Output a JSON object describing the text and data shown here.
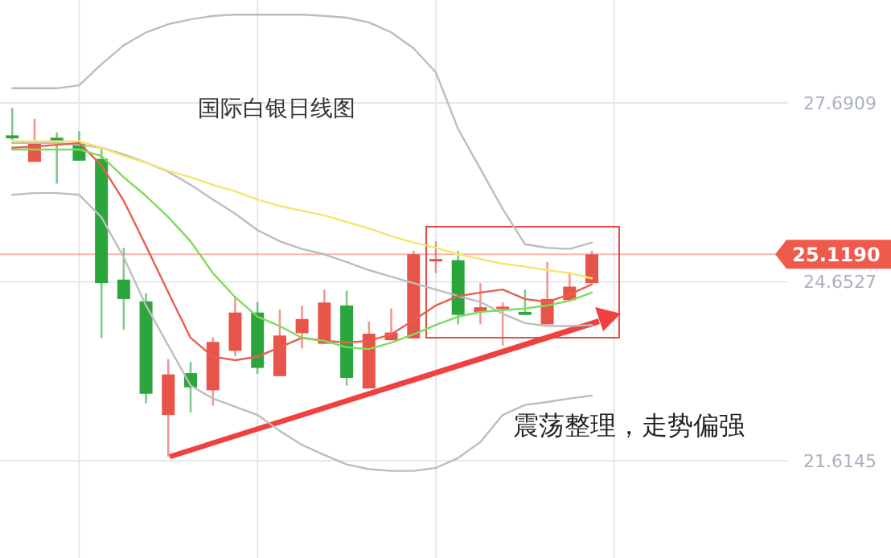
{
  "chart_data": {
    "type": "candlestick",
    "title": "国际白银日线图",
    "annotations": [
      "震荡整理，走势偏强"
    ],
    "categories": [
      null,
      null,
      null,
      null,
      null,
      null,
      null,
      null,
      null,
      null,
      null,
      null,
      null,
      null,
      null,
      null,
      null,
      null,
      null,
      null,
      null,
      null,
      null,
      null,
      null,
      null,
      null
    ],
    "ohlc": [
      [
        27.14,
        27.61,
        27.06,
        27.09
      ],
      [
        26.69,
        27.42,
        26.69,
        27.05
      ],
      [
        27.1,
        27.19,
        26.32,
        27.02
      ],
      [
        27.0,
        27.21,
        26.71,
        26.71
      ],
      [
        26.74,
        26.93,
        23.7,
        24.63
      ],
      [
        24.69,
        25.23,
        23.84,
        24.36
      ],
      [
        24.32,
        24.46,
        22.59,
        22.75
      ],
      [
        22.39,
        23.34,
        21.68,
        23.08
      ],
      [
        23.1,
        23.29,
        22.43,
        22.86
      ],
      [
        22.81,
        23.71,
        22.55,
        23.63
      ],
      [
        23.48,
        24.41,
        23.39,
        24.13
      ],
      [
        24.13,
        24.31,
        23.09,
        23.19
      ],
      [
        23.05,
        24.18,
        23.05,
        23.74
      ],
      [
        23.78,
        24.25,
        23.52,
        24.02
      ],
      [
        23.6,
        24.52,
        23.6,
        24.3
      ],
      [
        24.25,
        24.5,
        22.89,
        23.02
      ],
      [
        22.84,
        23.98,
        22.84,
        23.77
      ],
      [
        23.66,
        24.2,
        23.66,
        23.79
      ],
      [
        23.69,
        25.18,
        23.69,
        25.12
      ],
      [
        25.02,
        25.34,
        24.8,
        25.04
      ],
      [
        25.02,
        25.18,
        23.93,
        24.09
      ],
      [
        24.14,
        24.63,
        23.93,
        24.22
      ],
      [
        24.2,
        24.3,
        23.57,
        24.23
      ],
      [
        24.14,
        24.52,
        24.09,
        24.09
      ],
      [
        23.93,
        24.99,
        23.93,
        24.36
      ],
      [
        24.34,
        24.82,
        24.34,
        24.57
      ],
      [
        24.63,
        25.18,
        24.63,
        25.119
      ]
    ],
    "colors": [
      "#2aa63c",
      "#e8534a",
      "#2aa63c",
      "#2aa63c",
      "#2aa63c",
      "#2aa63c",
      "#2aa63c",
      "#e8534a",
      "#2aa63c",
      "#e8534a",
      "#e8534a",
      "#2aa63c",
      "#e8534a",
      "#e8534a",
      "#e8534a",
      "#2aa63c",
      "#e8534a",
      "#e8534a",
      "#e8534a",
      "#e8534a",
      "#2aa63c",
      "#e8534a",
      "#e8534a",
      "#2aa63c",
      "#e8534a",
      "#e8534a",
      "#e8534a"
    ],
    "series": [
      {
        "type": "line",
        "color": "#bdbdbd",
        "values": [
          27.94,
          27.94,
          27.94,
          27.99,
          28.35,
          28.67,
          28.89,
          29.03,
          29.11,
          29.17,
          29.19,
          29.19,
          29.19,
          29.19,
          29.17,
          29.14,
          29.06,
          28.89,
          28.62,
          28.21,
          27.25,
          26.57,
          25.89,
          25.29,
          25.23,
          25.21,
          25.32
        ]
      },
      {
        "type": "line",
        "color": "#bdbdbd",
        "values": [
          27.01,
          27.01,
          27.01,
          26.98,
          26.93,
          26.82,
          26.68,
          26.52,
          26.3,
          26.05,
          25.81,
          25.53,
          25.34,
          25.21,
          25.12,
          24.99,
          24.85,
          24.74,
          24.63,
          24.52,
          24.41,
          24.31,
          24.11,
          23.95,
          23.9,
          23.9,
          23.92
        ]
      },
      {
        "type": "line",
        "color": "#bdbdbd",
        "values": [
          26.13,
          26.16,
          26.16,
          26.13,
          25.75,
          25.07,
          24.25,
          23.57,
          22.89,
          22.67,
          22.53,
          22.39,
          22.12,
          21.88,
          21.71,
          21.55,
          21.47,
          21.44,
          21.44,
          21.49,
          21.66,
          21.93,
          22.39,
          22.56,
          22.61,
          22.67,
          22.72
        ]
      },
      {
        "type": "line",
        "color": "#f5e66a",
        "values": [
          27.04,
          27.04,
          27.04,
          27.04,
          26.93,
          26.79,
          26.68,
          26.54,
          26.43,
          26.3,
          26.19,
          26.05,
          25.94,
          25.86,
          25.78,
          25.67,
          25.56,
          25.43,
          25.32,
          25.23,
          25.12,
          25.04,
          24.96,
          24.91,
          24.85,
          24.8,
          24.71
        ]
      },
      {
        "type": "line",
        "color": "#e8604c",
        "values": [
          26.93,
          26.95,
          26.98,
          27.01,
          26.63,
          26.03,
          25.26,
          24.47,
          23.7,
          23.38,
          23.32,
          23.38,
          23.54,
          23.7,
          23.65,
          23.62,
          23.65,
          23.76,
          24.0,
          24.25,
          24.41,
          24.47,
          24.52,
          24.36,
          24.31,
          24.44,
          24.61
        ]
      },
      {
        "type": "line",
        "color": "#7ddc5a",
        "values": [
          26.9,
          26.9,
          26.9,
          26.9,
          26.79,
          26.43,
          26.11,
          25.75,
          25.34,
          24.8,
          24.39,
          24.06,
          23.9,
          23.7,
          23.65,
          23.54,
          23.51,
          23.62,
          23.76,
          23.92,
          24.06,
          24.14,
          24.17,
          24.2,
          24.25,
          24.33,
          24.47
        ]
      }
    ],
    "ylim": [
      19.96,
      29.44
    ],
    "yticks": [
      27.6909,
      24.6527,
      21.6145
    ],
    "ref_lines": [
      {
        "axis": "y",
        "value": 25.119,
        "label": "25.1190",
        "color": "#ef5a4c"
      }
    ],
    "grid": true,
    "tick_labels": "y"
  }
}
